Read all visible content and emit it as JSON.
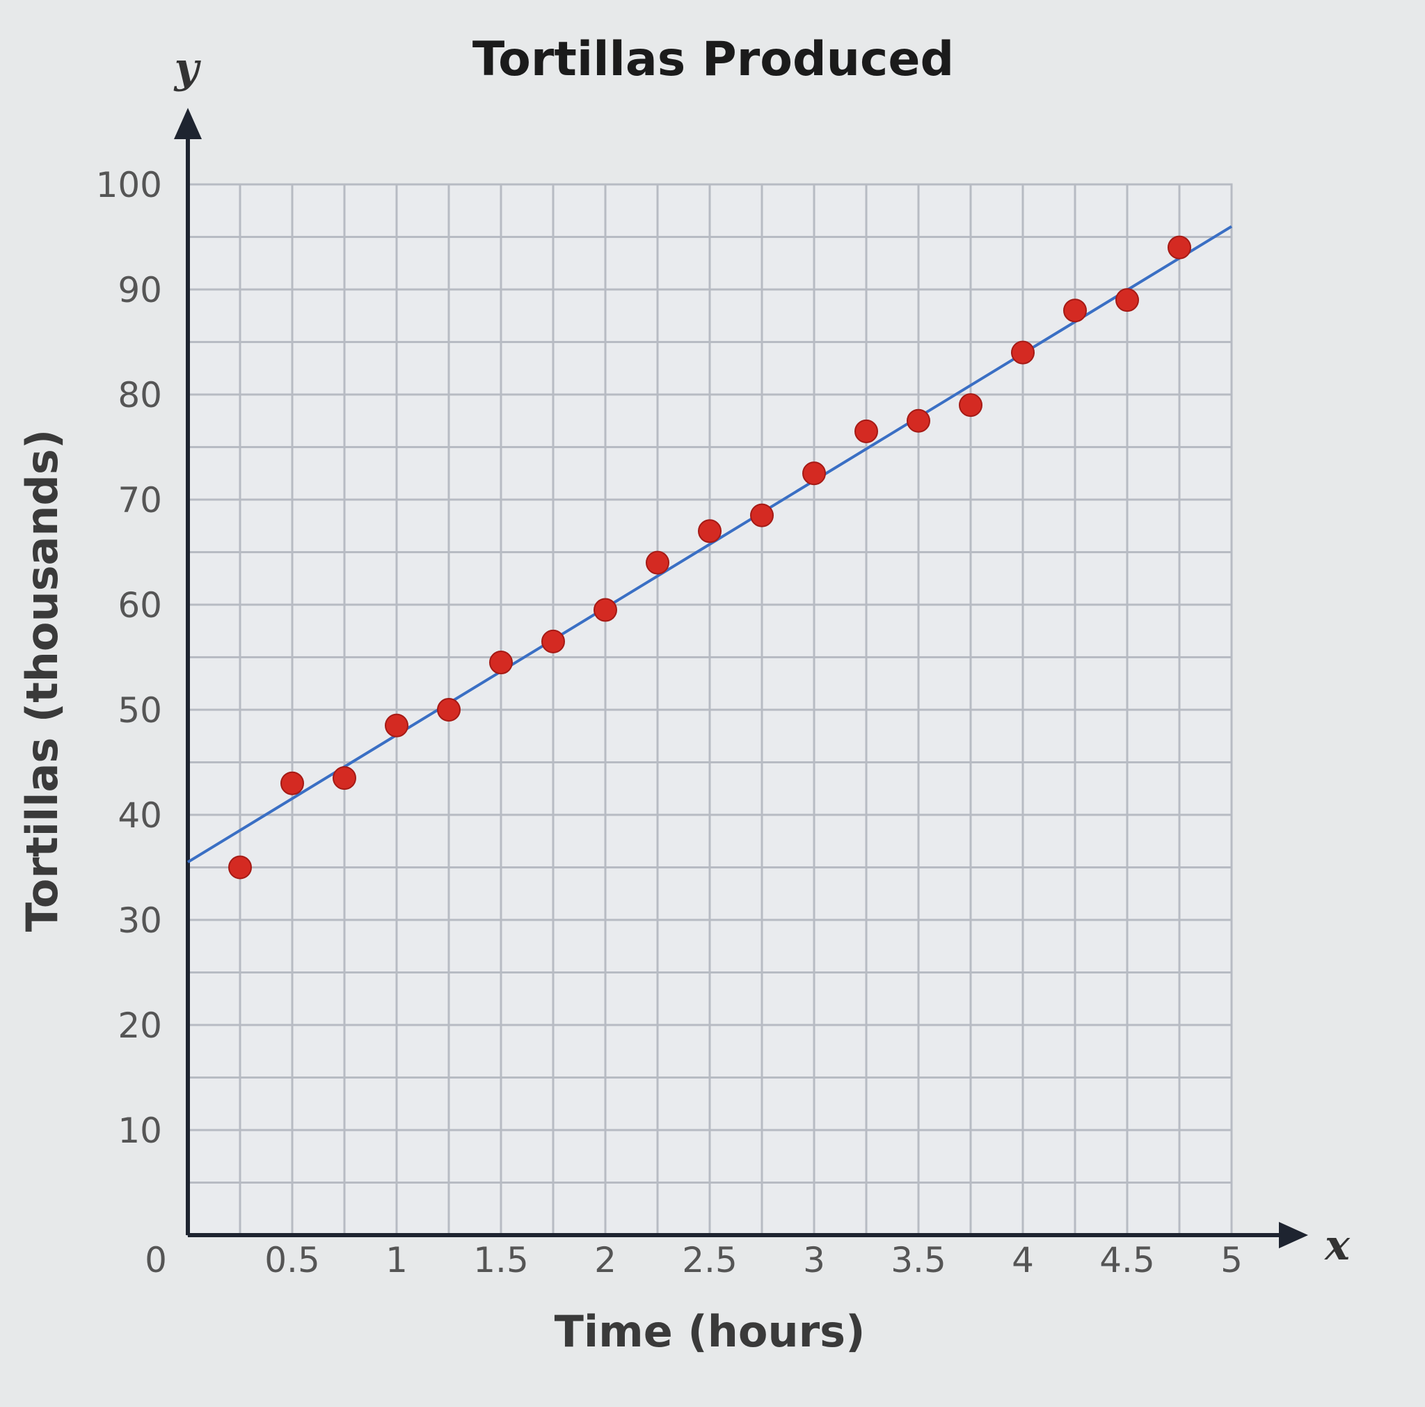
{
  "chart_data": {
    "type": "scatter",
    "title": "Tortillas Produced",
    "xlabel": "Time (hours)",
    "ylabel": "Tortillas (thousands)",
    "x_axis_letter": "x",
    "y_axis_letter": "y",
    "xlim": [
      0,
      5
    ],
    "ylim": [
      0,
      100
    ],
    "x_ticks": [
      0.5,
      1,
      1.5,
      2,
      2.5,
      3,
      3.5,
      4,
      4.5,
      5
    ],
    "x_tick_labels": [
      "0.5",
      "1",
      "1.5",
      "2",
      "2.5",
      "3",
      "3.5",
      "4",
      "4.5",
      "5"
    ],
    "y_ticks": [
      10,
      20,
      30,
      40,
      50,
      60,
      70,
      80,
      90,
      100
    ],
    "y_tick_labels": [
      "10",
      "20",
      "30",
      "40",
      "50",
      "60",
      "70",
      "80",
      "90",
      "100"
    ],
    "origin_label": "0",
    "grid": true,
    "minor_grid_step": {
      "x": 0.25,
      "y": 5
    },
    "series": [
      {
        "color": "#d42a22",
        "points": [
          {
            "x": 0.25,
            "y": 35
          },
          {
            "x": 0.5,
            "y": 43
          },
          {
            "x": 0.75,
            "y": 43.5
          },
          {
            "x": 1,
            "y": 48.5
          },
          {
            "x": 1.25,
            "y": 50
          },
          {
            "x": 1.5,
            "y": 54.5
          },
          {
            "x": 1.75,
            "y": 56.5
          },
          {
            "x": 2,
            "y": 59.5
          },
          {
            "x": 2.25,
            "y": 64
          },
          {
            "x": 2.5,
            "y": 67
          },
          {
            "x": 2.75,
            "y": 68.5
          },
          {
            "x": 3,
            "y": 72.5
          },
          {
            "x": 3.25,
            "y": 76.5
          },
          {
            "x": 3.5,
            "y": 77.5
          },
          {
            "x": 3.75,
            "y": 79
          },
          {
            "x": 4,
            "y": 84
          },
          {
            "x": 4.25,
            "y": 88
          },
          {
            "x": 4.5,
            "y": 89
          },
          {
            "x": 4.75,
            "y": 94
          }
        ]
      }
    ],
    "trend_line": {
      "color": "#3a6fc4",
      "start": {
        "x": 0,
        "y": 35.5
      },
      "end": {
        "x": 5,
        "y": 96
      }
    },
    "colors": {
      "background": "#e7e9ea",
      "grid": "#b7bbc3",
      "axis": "#1e2430"
    }
  }
}
